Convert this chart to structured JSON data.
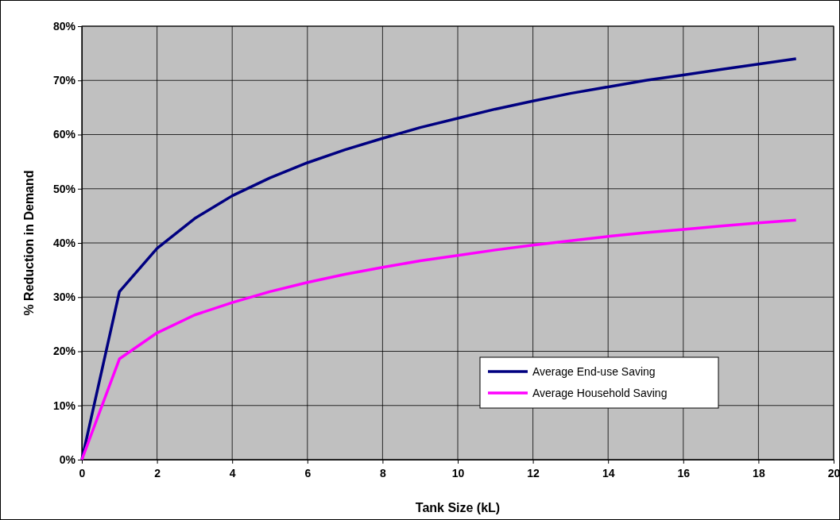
{
  "chart_data": {
    "type": "line",
    "xlabel": "Tank Size (kL)",
    "ylabel": "% Reduction in Demand",
    "x": [
      0,
      1,
      2,
      3,
      4,
      5,
      6,
      7,
      8,
      9,
      10,
      11,
      12,
      13,
      14,
      15,
      16,
      17,
      18,
      19
    ],
    "series": [
      {
        "name": "Average End-use Saving",
        "color": "#000080",
        "values": [
          0,
          31,
          39,
          44.5,
          48.7,
          52,
          54.8,
          57.2,
          59.3,
          61.3,
          63,
          64.7,
          66.2,
          67.6,
          68.8,
          70,
          71,
          72,
          73,
          74
        ]
      },
      {
        "name": "Average Household Saving",
        "color": "#ff00ff",
        "values": [
          0,
          18.6,
          23.4,
          26.7,
          29,
          31,
          32.7,
          34.2,
          35.5,
          36.7,
          37.7,
          38.7,
          39.6,
          40.4,
          41.2,
          41.9,
          42.5,
          43.1,
          43.7,
          44.2
        ]
      }
    ],
    "xlim": [
      0,
      20
    ],
    "xticks": [
      0,
      2,
      4,
      6,
      8,
      10,
      12,
      14,
      16,
      18,
      20
    ],
    "ylim": [
      0,
      80
    ],
    "yticks": [
      {
        "value": 0,
        "label": "0%"
      },
      {
        "value": 10,
        "label": "10%"
      },
      {
        "value": 20,
        "label": "20%"
      },
      {
        "value": 30,
        "label": "30%"
      },
      {
        "value": 40,
        "label": "40%"
      },
      {
        "value": 50,
        "label": "50%"
      },
      {
        "value": 60,
        "label": "60%"
      },
      {
        "value": 70,
        "label": "70%"
      },
      {
        "value": 80,
        "label": "80%"
      }
    ],
    "grid": true,
    "legend": "bottom right",
    "marker": "none",
    "line_style": "solid"
  }
}
